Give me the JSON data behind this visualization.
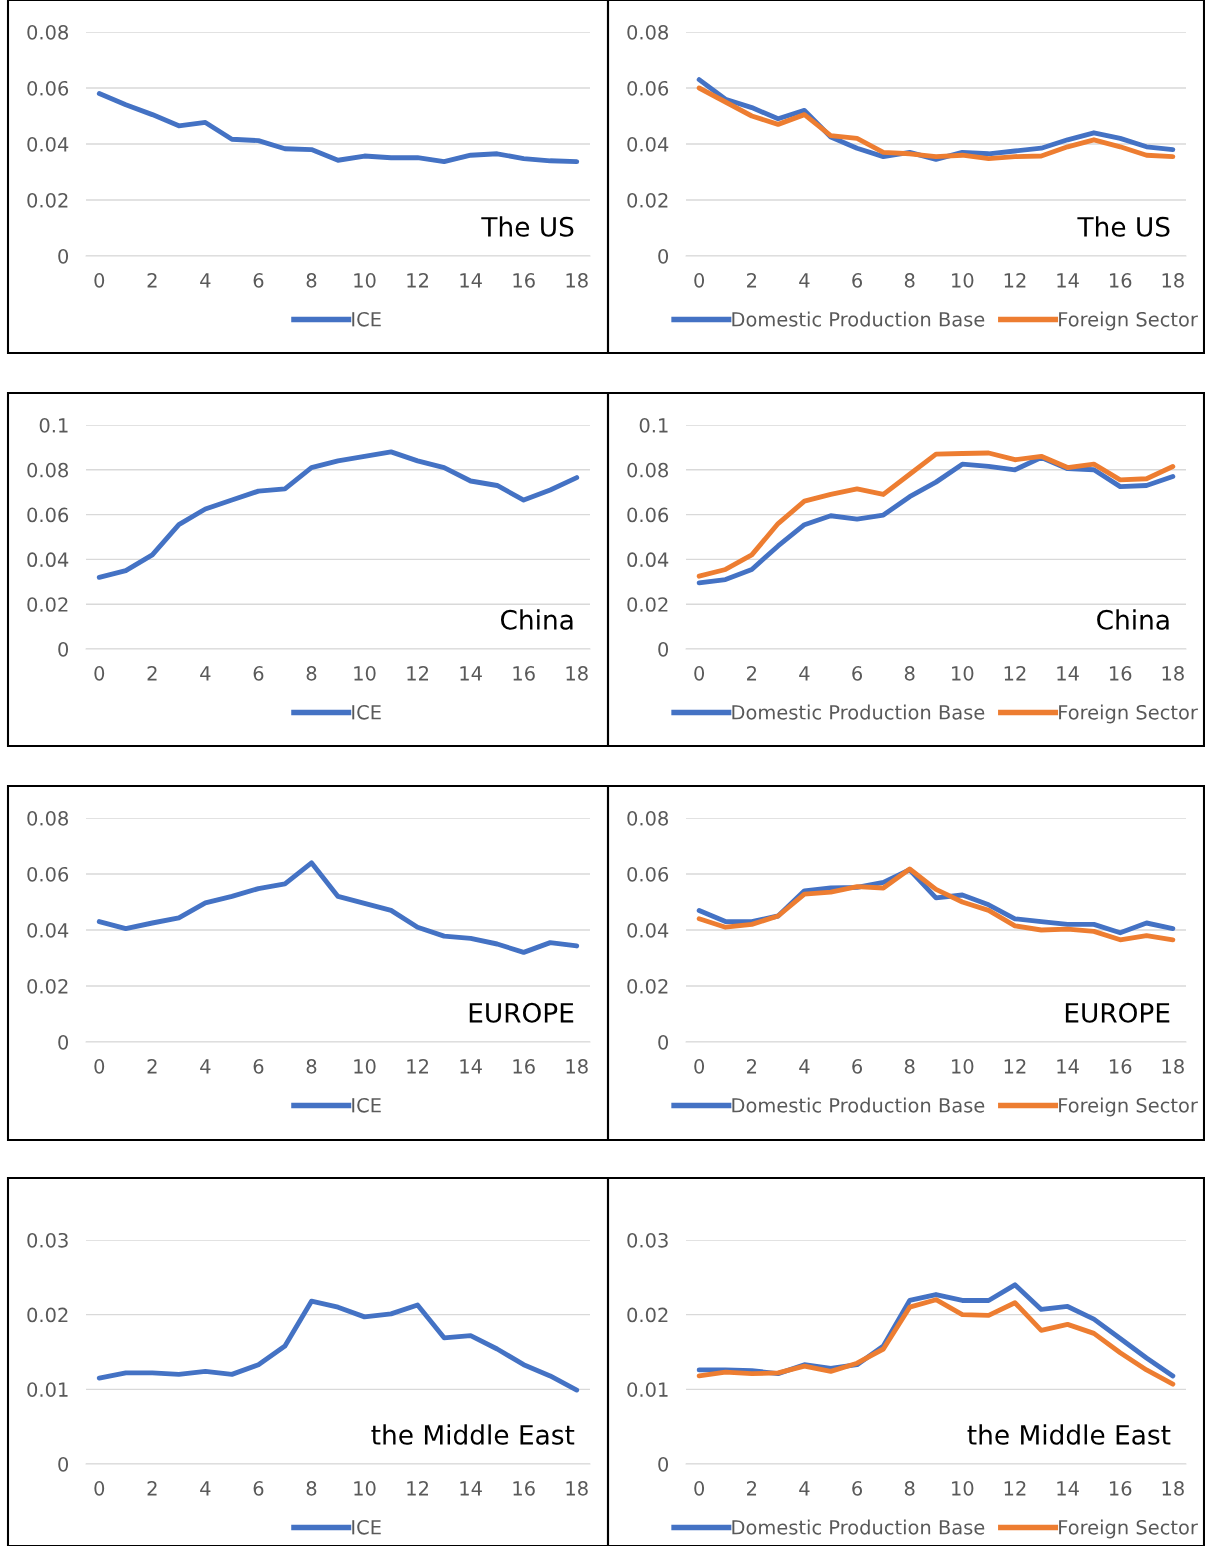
{
  "chart_data": [
    {
      "type": "line",
      "categories": [
        "0",
        null,
        "2",
        null,
        "4",
        null,
        "6",
        null,
        "8",
        null,
        "10",
        null,
        "12",
        null,
        "14",
        null,
        "16",
        null,
        "18"
      ],
      "ylim": [
        0,
        0.08
      ],
      "yticks": [
        0,
        0.02,
        0.04,
        0.06,
        0.08
      ],
      "grid": "y",
      "legend": "bottom",
      "annotations": [
        "The US"
      ],
      "series": [
        {
          "name": "ICE",
          "color": "#4472c4",
          "values": [
            0.058,
            0.054,
            0.0505,
            0.0465,
            0.0477,
            0.0417,
            0.0412,
            0.0383,
            0.038,
            0.0342,
            0.0357,
            0.0351,
            0.0351,
            0.0337,
            0.036,
            0.0365,
            0.0348,
            0.034,
            0.0337
          ]
        }
      ]
    },
    {
      "type": "line",
      "categories": [
        "0",
        null,
        "2",
        null,
        "4",
        null,
        "6",
        null,
        "8",
        null,
        "10",
        null,
        "12",
        null,
        "14",
        null,
        "16",
        null,
        "18"
      ],
      "ylim": [
        0,
        0.08
      ],
      "yticks": [
        0,
        0.02,
        0.04,
        0.06,
        0.08
      ],
      "grid": "y",
      "legend": "bottom",
      "annotations": [
        "The US"
      ],
      "series": [
        {
          "name": "Domestic Production Base",
          "color": "#4472c4",
          "values": [
            0.063,
            0.056,
            0.053,
            0.049,
            0.052,
            0.0425,
            0.0385,
            0.0355,
            0.037,
            0.0345,
            0.037,
            0.0365,
            0.0375,
            0.0385,
            0.0415,
            0.044,
            0.042,
            0.039,
            0.038
          ]
        },
        {
          "name": "Foreign Sector",
          "color": "#ed7d31",
          "values": [
            0.06,
            0.055,
            0.05,
            0.047,
            0.0505,
            0.043,
            0.042,
            0.037,
            0.0365,
            0.0355,
            0.036,
            0.0348,
            0.0355,
            0.0357,
            0.039,
            0.0415,
            0.039,
            0.036,
            0.0355
          ]
        }
      ]
    },
    {
      "type": "line",
      "categories": [
        "0",
        null,
        "2",
        null,
        "4",
        null,
        "6",
        null,
        "8",
        null,
        "10",
        null,
        "12",
        null,
        "14",
        null,
        "16",
        null,
        "18"
      ],
      "ylim": [
        0,
        0.1
      ],
      "yticks": [
        0,
        0.02,
        0.04,
        0.06,
        0.08,
        0.1
      ],
      "grid": "y",
      "legend": "bottom",
      "annotations": [
        "China"
      ],
      "series": [
        {
          "name": "ICE",
          "color": "#4472c4",
          "values": [
            0.032,
            0.035,
            0.042,
            0.0555,
            0.0625,
            0.0665,
            0.0705,
            0.0715,
            0.081,
            0.084,
            0.086,
            0.088,
            0.084,
            0.081,
            0.075,
            0.073,
            0.0665,
            0.071,
            0.0765
          ]
        }
      ]
    },
    {
      "type": "line",
      "categories": [
        "0",
        null,
        "2",
        null,
        "4",
        null,
        "6",
        null,
        "8",
        null,
        "10",
        null,
        "12",
        null,
        "14",
        null,
        "16",
        null,
        "18"
      ],
      "ylim": [
        0,
        0.1
      ],
      "yticks": [
        0,
        0.02,
        0.04,
        0.06,
        0.08,
        0.1
      ],
      "grid": "y",
      "legend": "bottom",
      "annotations": [
        "China"
      ],
      "series": [
        {
          "name": "Domestic Production Base",
          "color": "#4472c4",
          "values": [
            0.0295,
            0.031,
            0.0355,
            0.046,
            0.0555,
            0.0595,
            0.058,
            0.0598,
            0.068,
            0.0745,
            0.0825,
            0.0815,
            0.08,
            0.0855,
            0.0805,
            0.08,
            0.0725,
            0.073,
            0.077
          ]
        },
        {
          "name": "Foreign Sector",
          "color": "#ed7d31",
          "values": [
            0.0325,
            0.0355,
            0.042,
            0.056,
            0.066,
            0.069,
            0.0715,
            0.069,
            0.078,
            0.087,
            0.0873,
            0.0875,
            0.0845,
            0.086,
            0.081,
            0.0825,
            0.0755,
            0.076,
            0.0815
          ]
        }
      ]
    },
    {
      "type": "line",
      "categories": [
        "0",
        null,
        "2",
        null,
        "4",
        null,
        "6",
        null,
        "8",
        null,
        "10",
        null,
        "12",
        null,
        "14",
        null,
        "16",
        null,
        "18"
      ],
      "ylim": [
        0,
        0.08
      ],
      "yticks": [
        0,
        0.02,
        0.04,
        0.06,
        0.08
      ],
      "grid": "y",
      "legend": "bottom",
      "annotations": [
        "EUROPE"
      ],
      "series": [
        {
          "name": "ICE",
          "color": "#4472c4",
          "values": [
            0.043,
            0.0405,
            0.0425,
            0.0443,
            0.0497,
            0.052,
            0.0548,
            0.0565,
            0.064,
            0.052,
            0.0495,
            0.047,
            0.041,
            0.0378,
            0.037,
            0.035,
            0.032,
            0.0355,
            0.0343
          ]
        }
      ]
    },
    {
      "type": "line",
      "categories": [
        "0",
        null,
        "2",
        null,
        "4",
        null,
        "6",
        null,
        "8",
        null,
        "10",
        null,
        "12",
        null,
        "14",
        null,
        "16",
        null,
        "18"
      ],
      "ylim": [
        0,
        0.08
      ],
      "yticks": [
        0,
        0.02,
        0.04,
        0.06,
        0.08
      ],
      "grid": "y",
      "legend": "bottom",
      "annotations": [
        "EUROPE"
      ],
      "series": [
        {
          "name": "Domestic Production Base",
          "color": "#4472c4",
          "values": [
            0.047,
            0.043,
            0.043,
            0.045,
            0.054,
            0.055,
            0.0552,
            0.057,
            0.0615,
            0.0515,
            0.0525,
            0.049,
            0.044,
            0.043,
            0.042,
            0.042,
            0.039,
            0.0425,
            0.0405
          ]
        },
        {
          "name": "Foreign Sector",
          "color": "#ed7d31",
          "values": [
            0.044,
            0.041,
            0.042,
            0.045,
            0.0528,
            0.0535,
            0.0555,
            0.055,
            0.0618,
            0.0545,
            0.05,
            0.047,
            0.0415,
            0.04,
            0.0403,
            0.0395,
            0.0365,
            0.038,
            0.0365
          ]
        }
      ]
    },
    {
      "type": "line",
      "categories": [
        "0",
        null,
        "2",
        null,
        "4",
        null,
        "6",
        null,
        "8",
        null,
        "10",
        null,
        "12",
        null,
        "14",
        null,
        "16",
        null,
        "18"
      ],
      "ylim": [
        0,
        0.03
      ],
      "yticks": [
        0,
        0.01,
        0.02,
        0.03
      ],
      "grid": "y",
      "legend": "bottom",
      "annotations": [
        "the Middle East"
      ],
      "series": [
        {
          "name": "ICE",
          "color": "#4472c4",
          "values": [
            0.0115,
            0.0122,
            0.0122,
            0.012,
            0.0124,
            0.012,
            0.0133,
            0.0158,
            0.0218,
            0.021,
            0.0197,
            0.0201,
            0.0213,
            0.0169,
            0.0172,
            0.0154,
            0.0133,
            0.0118,
            0.0099
          ]
        }
      ]
    },
    {
      "type": "line",
      "categories": [
        "0",
        null,
        "2",
        null,
        "4",
        null,
        "6",
        null,
        "8",
        null,
        "10",
        null,
        "12",
        null,
        "14",
        null,
        "16",
        null,
        "18"
      ],
      "ylim": [
        0,
        0.03
      ],
      "yticks": [
        0,
        0.01,
        0.02,
        0.03
      ],
      "grid": "y",
      "legend": "bottom",
      "annotations": [
        "the Middle East"
      ],
      "series": [
        {
          "name": "Domestic Production Base",
          "color": "#4472c4",
          "values": [
            0.0126,
            0.0126,
            0.0125,
            0.0121,
            0.0133,
            0.0128,
            0.0133,
            0.0158,
            0.0219,
            0.0227,
            0.0219,
            0.0219,
            0.024,
            0.0207,
            0.0211,
            0.0194,
            0.0168,
            0.0142,
            0.0118
          ]
        },
        {
          "name": "Foreign Sector",
          "color": "#ed7d31",
          "values": [
            0.0118,
            0.0123,
            0.0121,
            0.0122,
            0.0131,
            0.0124,
            0.0135,
            0.0154,
            0.021,
            0.022,
            0.02,
            0.0199,
            0.0216,
            0.0179,
            0.0187,
            0.0175,
            0.0149,
            0.0126,
            0.0107
          ]
        }
      ]
    }
  ]
}
